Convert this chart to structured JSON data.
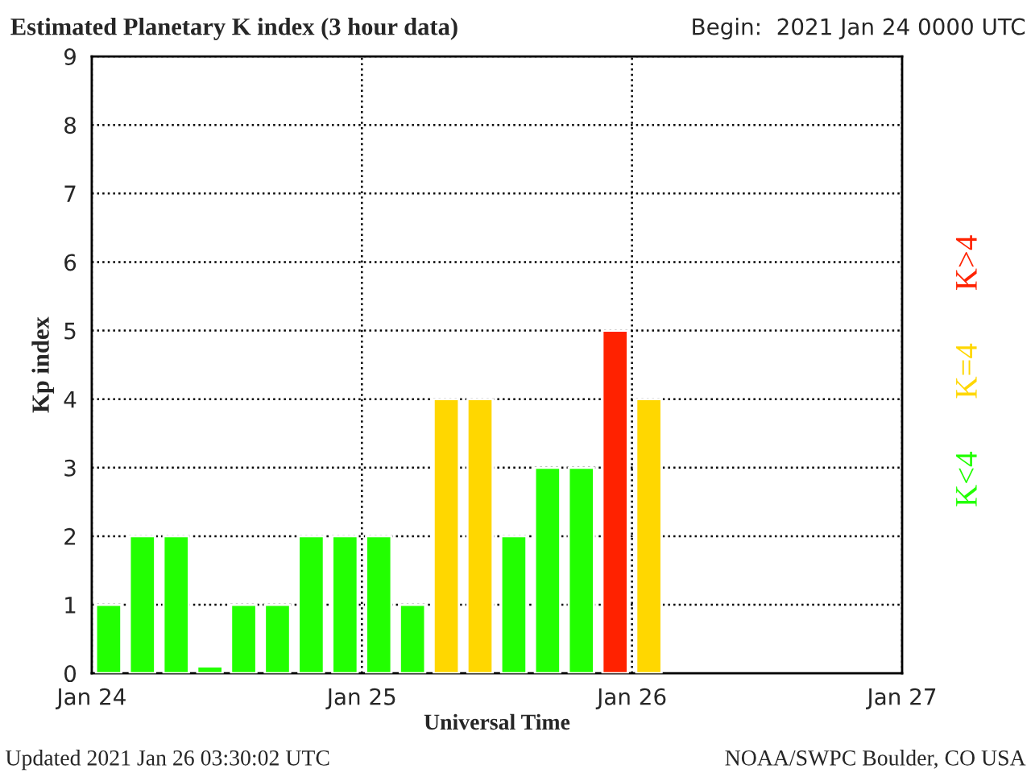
{
  "chart_data": {
    "type": "bar",
    "title": "Estimated Planetary K index (3 hour data)",
    "subtitle": "Begin:  2021 Jan 24 0000 UTC",
    "xlabel": "Universal Time",
    "ylabel": "Kp index",
    "x": [
      "2021-01-24T01:30",
      "2021-01-24T04:30",
      "2021-01-24T07:30",
      "2021-01-24T10:30",
      "2021-01-24T13:30",
      "2021-01-24T16:30",
      "2021-01-24T19:30",
      "2021-01-24T22:30",
      "2021-01-25T01:30",
      "2021-01-25T04:30",
      "2021-01-25T07:30",
      "2021-01-25T10:30",
      "2021-01-25T13:30",
      "2021-01-25T16:30",
      "2021-01-25T19:30",
      "2021-01-25T22:30",
      "2021-01-26T01:30"
    ],
    "series": [
      {
        "name": "K<4",
        "color": "#22ff00",
        "values": [
          1,
          2,
          2,
          0.1,
          1,
          1,
          2,
          2,
          2,
          1,
          null,
          null,
          2,
          3,
          3,
          null,
          null
        ]
      },
      {
        "name": "K=4",
        "color": "#ffd700",
        "values": [
          null,
          null,
          null,
          null,
          null,
          null,
          null,
          null,
          null,
          null,
          4,
          4,
          null,
          null,
          null,
          null,
          4
        ]
      },
      {
        "name": "K>4",
        "color": "#ff2200",
        "values": [
          null,
          null,
          null,
          null,
          null,
          null,
          null,
          null,
          null,
          null,
          null,
          null,
          null,
          null,
          null,
          5,
          null
        ]
      }
    ],
    "xlim": [
      "2021-01-24",
      "2021-01-27"
    ],
    "xticks": [
      {
        "value": "2021-01-24",
        "label": "Jan 24"
      },
      {
        "value": "2021-01-25",
        "label": "Jan 25"
      },
      {
        "value": "2021-01-26",
        "label": "Jan 26"
      },
      {
        "value": "2021-01-27",
        "label": "Jan 27"
      }
    ],
    "ylim": [
      0,
      9
    ],
    "yticks": [
      0,
      1,
      2,
      3,
      4,
      5,
      6,
      7,
      8,
      9
    ],
    "grid": true,
    "legend": "right",
    "annotations": [
      "Updated 2021 Jan 26 03:30:02 UTC",
      "NOAA/SWPC Boulder, CO USA"
    ]
  }
}
